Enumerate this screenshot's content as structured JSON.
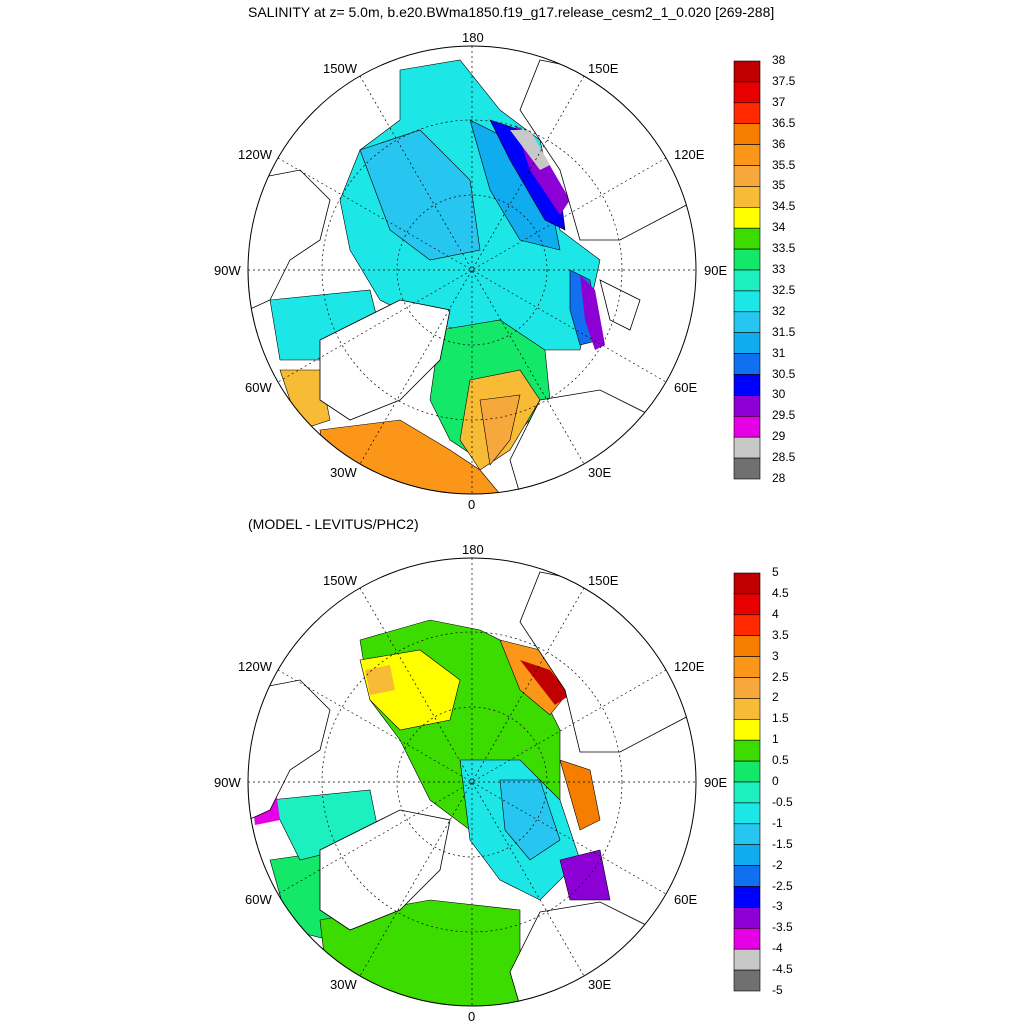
{
  "top_panel": {
    "title": "SALINITY at z=   5.0m, b.e20.BWma1850.f19_g17.release_cesm2_1_0.020 [269-288]",
    "meridian_labels": {
      "m180": "180",
      "m150e": "150E",
      "m120e": "120E",
      "m90e": "90E",
      "m60e": "60E",
      "m30e": "30E",
      "m0": "0",
      "m30w": "30W",
      "m60w": "60W",
      "m90w": "90W",
      "m120w": "120W",
      "m150w": "150W"
    },
    "colorbar": {
      "labels": [
        "38",
        "37.5",
        "37",
        "36.5",
        "36",
        "35.5",
        "35",
        "34.5",
        "34",
        "33.5",
        "33",
        "32.5",
        "32",
        "31.5",
        "31",
        "30.5",
        "30",
        "29.5",
        "29",
        "28.5",
        "28"
      ],
      "colors": [
        "#c00000",
        "#e60000",
        "#ff2a00",
        "#f57d00",
        "#fb9618",
        "#f7a83c",
        "#f8bb35",
        "#ffff00",
        "#3ddc00",
        "#13e868",
        "#1cf0c0",
        "#1ce6e6",
        "#26c6f0",
        "#10acf0",
        "#1070f0",
        "#0000ff",
        "#8c00d6",
        "#e600e6",
        "#c8c8c8",
        "#707070"
      ]
    }
  },
  "bottom_panel": {
    "title": "(MODEL - LEVITUS/PHC2)",
    "meridian_labels": {
      "m180": "180",
      "m150e": "150E",
      "m120e": "120E",
      "m90e": "90E",
      "m60e": "60E",
      "m30e": "30E",
      "m0": "0",
      "m30w": "30W",
      "m60w": "60W",
      "m90w": "90W",
      "m120w": "120W",
      "m150w": "150W"
    },
    "colorbar": {
      "labels": [
        "5",
        "4.5",
        "4",
        "3.5",
        "3",
        "2.5",
        "2",
        "1.5",
        "1",
        "0.5",
        "0",
        "-0.5",
        "-1",
        "-1.5",
        "-2",
        "-2.5",
        "-3",
        "-3.5",
        "-4",
        "-4.5",
        "-5"
      ],
      "colors": [
        "#c00000",
        "#e60000",
        "#ff2a00",
        "#f57d00",
        "#fb9618",
        "#f7a83c",
        "#f8bb35",
        "#ffff00",
        "#3ddc00",
        "#13e868",
        "#1cf0c0",
        "#1ce6e6",
        "#26c6f0",
        "#10acf0",
        "#1070f0",
        "#0000ff",
        "#8c00d6",
        "#e600e6",
        "#c8c8c8",
        "#707070"
      ]
    }
  }
}
